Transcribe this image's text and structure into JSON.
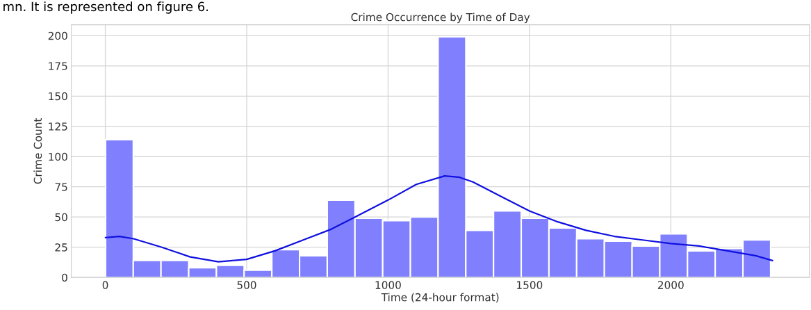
{
  "chart_data": {
    "type": "histogram",
    "title": "Crime Occurrence by Time of Day",
    "xlabel": "Time (24-hour format)",
    "ylabel": "Crime Count",
    "annotations": [
      "mn. It is represented on figure 6."
    ],
    "bins": [
      1,
      99,
      197,
      295,
      393,
      491,
      589,
      687,
      785,
      883,
      981,
      1079,
      1177,
      1275,
      1373,
      1471,
      1569,
      1667,
      1765,
      1863,
      1961,
      2059,
      2157,
      2255,
      2353
    ],
    "values": [
      114,
      14,
      14,
      8,
      10,
      6,
      23,
      18,
      64,
      49,
      47,
      50,
      199,
      39,
      55,
      49,
      41,
      32,
      30,
      26,
      36,
      22,
      24,
      31
    ],
    "color": "#8080ff",
    "series": [
      {
        "type": "line",
        "color": "#1010e0",
        "x": [
          1,
          50,
          100,
          200,
          300,
          400,
          500,
          600,
          700,
          800,
          900,
          1000,
          1100,
          1200,
          1250,
          1300,
          1400,
          1500,
          1600,
          1700,
          1800,
          1900,
          2000,
          2100,
          2200,
          2300,
          2359
        ],
        "values": [
          33,
          34,
          32,
          25,
          17,
          13,
          15,
          22,
          31,
          40,
          52,
          64,
          77,
          84,
          83,
          79,
          67,
          55,
          46,
          39,
          34,
          31,
          28,
          26,
          22,
          18,
          14
        ]
      }
    ],
    "xlim": [
      -120,
      2490
    ],
    "ylim": [
      0,
      209
    ],
    "xticks": [
      0,
      500,
      1000,
      1500,
      2000
    ],
    "yticks": [
      0,
      25,
      50,
      75,
      100,
      125,
      150,
      175,
      200
    ],
    "grid": true
  }
}
